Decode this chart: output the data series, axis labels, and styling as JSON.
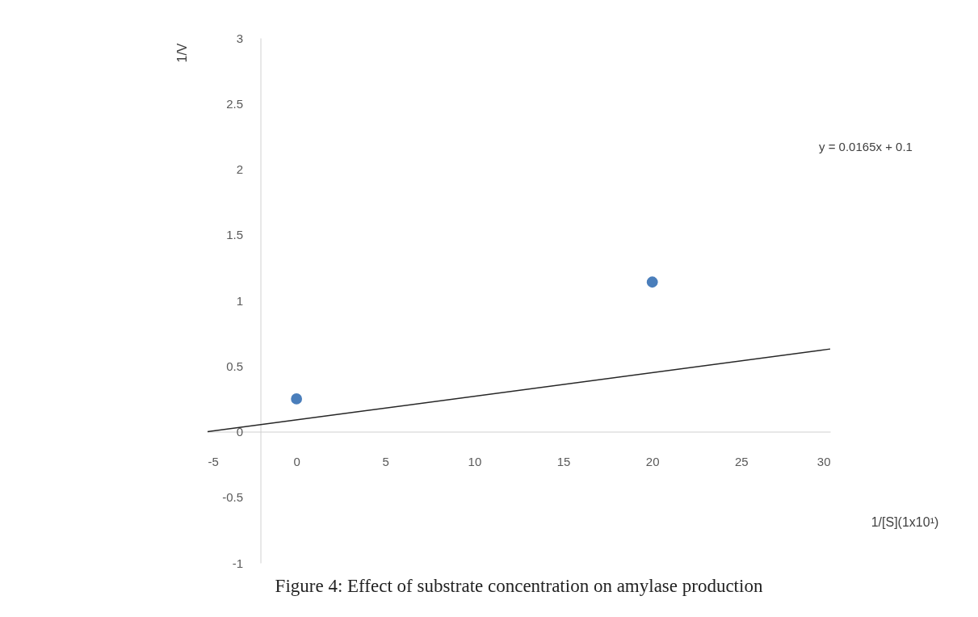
{
  "chart_data": {
    "type": "scatter",
    "title": "Figure 4: Effect of substrate concentration on amylase production",
    "xlabel": "1/[S](1x10¹)",
    "ylabel": "1/V",
    "annotations": [
      "y = 0.0165x + 0.1"
    ],
    "xlim": [
      -5,
      30
    ],
    "ylim": [
      -1,
      3
    ],
    "xticks": [
      -5,
      0,
      5,
      10,
      15,
      20,
      25,
      30
    ],
    "yticks": [
      -1,
      -0.5,
      0,
      0.5,
      1,
      1.5,
      2,
      2.5,
      3
    ],
    "grid": false,
    "series": [
      {
        "color": "#4a7ebb",
        "x": [
          0,
          20
        ],
        "values": [
          0.25,
          1.14
        ],
        "marker": "circle"
      },
      {
        "type": "line",
        "color": "#262626",
        "x": [
          -5,
          30
        ],
        "values": [
          0.0,
          0.63
        ],
        "line_style": "solid"
      }
    ]
  }
}
